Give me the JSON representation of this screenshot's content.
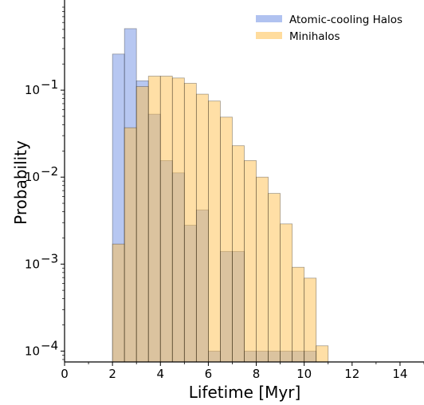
{
  "chart_data": {
    "type": "bar",
    "subtype": "overlapping-histogram",
    "title": "",
    "xlabel": "Lifetime [Myr]",
    "ylabel": "Probability",
    "xlim": [
      0,
      15
    ],
    "ylim": [
      7.5e-05,
      1
    ],
    "yscale": "log",
    "bin_width": 0.5,
    "x_ticks": [
      0,
      2,
      4,
      6,
      8,
      10,
      12,
      14
    ],
    "x_tick_labels": [
      "0",
      "2",
      "4",
      "6",
      "8",
      "10",
      "12",
      "14"
    ],
    "y_ticks": [
      0.0001,
      0.001,
      0.01,
      0.1
    ],
    "y_tick_bases": [
      "10",
      "10",
      "10",
      "10"
    ],
    "y_tick_exponents": [
      "−4",
      "−3",
      "−2",
      "−1"
    ],
    "grid": false,
    "legend_position": "top-right",
    "series": [
      {
        "name": "Atomic-cooling Halos",
        "color": "#6f8fe3",
        "opacity": 0.5,
        "bins_start": [
          2.0,
          2.5,
          3.0,
          3.5,
          4.0,
          4.5,
          5.0,
          5.5,
          6.0,
          6.5,
          7.0,
          7.5,
          8.0,
          8.5,
          9.0,
          9.5,
          10.0
        ],
        "values": [
          0.26,
          0.51,
          0.128,
          0.053,
          0.0155,
          0.0112,
          0.0028,
          0.0042,
          0.0001,
          0.0014,
          0.0014,
          0.0001,
          0.0001,
          0.0001,
          0.0001,
          0.0001,
          0.0001
        ]
      },
      {
        "name": "Minihalos",
        "color": "#ffc04d",
        "opacity": 0.5,
        "bins_start": [
          2.0,
          2.5,
          3.0,
          3.5,
          4.0,
          4.5,
          5.0,
          5.5,
          6.0,
          6.5,
          7.0,
          7.5,
          8.0,
          8.5,
          9.0,
          9.5,
          10.0,
          10.5
        ],
        "values": [
          0.0017,
          0.037,
          0.11,
          0.145,
          0.145,
          0.138,
          0.12,
          0.09,
          0.075,
          0.049,
          0.023,
          0.0155,
          0.01,
          0.0065,
          0.0029,
          0.00092,
          0.00069,
          0.000115
        ]
      }
    ]
  }
}
